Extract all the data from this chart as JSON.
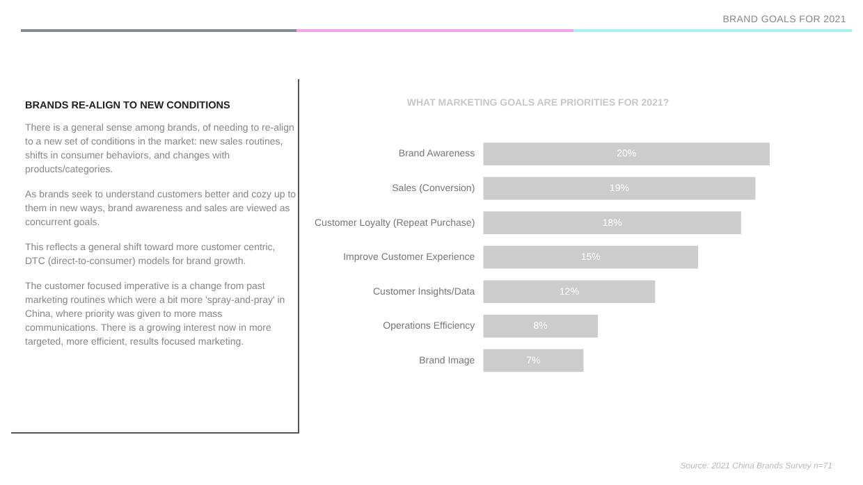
{
  "chart_data": [
    {
      "type": "other",
      "title": "BRANDS RE-ALIGN TO NEW CONDITIONS",
      "annotations": [
        "There is a general sense among brands, of needing to re-align to a new set of conditions in the market: new sales routines, shifts in consumer behaviors, and changes with products/categories.",
        "As brands seek to understand customers better and cozy up to them in new ways, brand awareness and sales are viewed as concurrent goals.",
        "This reflects a general shift toward more customer centric, DTC (direct-to-consumer) models for brand growth.",
        "The customer focused imperative is a change from past marketing routines which were a bit more 'spray-and-pray' in China, where priority was given to more mass communications. There is a growing interest now in more targeted, more efficient, results focused marketing."
      ]
    },
    {
      "type": "bar",
      "orientation": "horizontal",
      "title": "WHAT MARKETING GOALS ARE PRIORITIES FOR 2021?",
      "categories": [
        "Brand Awareness",
        "Sales (Conversion)",
        "Customer Loyalty (Repeat Purchase)",
        "Improve Customer Experience",
        "Customer Insights/Data",
        "Operations Efficiency",
        "Brand Image"
      ],
      "values": [
        20,
        19,
        18,
        15,
        12,
        8,
        7
      ],
      "value_labels": [
        "20%",
        "19%",
        "18%",
        "15%",
        "12%",
        "8%",
        "7%"
      ],
      "color": "#cccccc",
      "grid": false,
      "legend": false,
      "tick_labels": "y",
      "annotations": [
        "BRAND GOALS FOR 2021",
        "Source: 2021 China Brands Survey n=71"
      ]
    }
  ]
}
